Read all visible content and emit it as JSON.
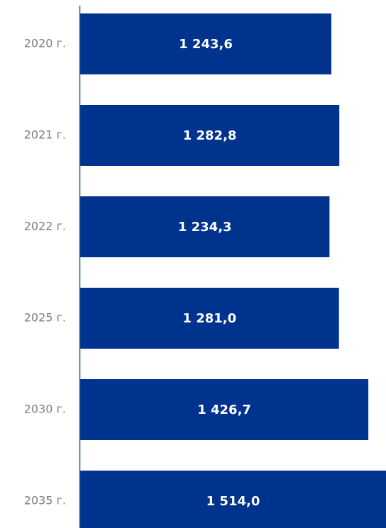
{
  "chart_data": {
    "type": "bar",
    "orientation": "horizontal",
    "categories": [
      "2020 г.",
      "2021 г.",
      "2022 г.",
      "2025 г.",
      "2030 г.",
      "2035 г."
    ],
    "values": [
      1243.6,
      1282.8,
      1234.3,
      1281.0,
      1426.7,
      1514.0
    ],
    "value_labels": [
      "1 243,6",
      "1 282,8",
      "1 234,3",
      "1 281,0",
      "1 426,7",
      "1 514,0"
    ],
    "title": "",
    "xlabel": "",
    "ylabel": "",
    "grid": false,
    "legend": "none",
    "colors": {
      "bar": "#00338d",
      "axis": "#1f5f8b",
      "category_text": "#7f7f7f",
      "value_text": "#ffffff"
    }
  }
}
